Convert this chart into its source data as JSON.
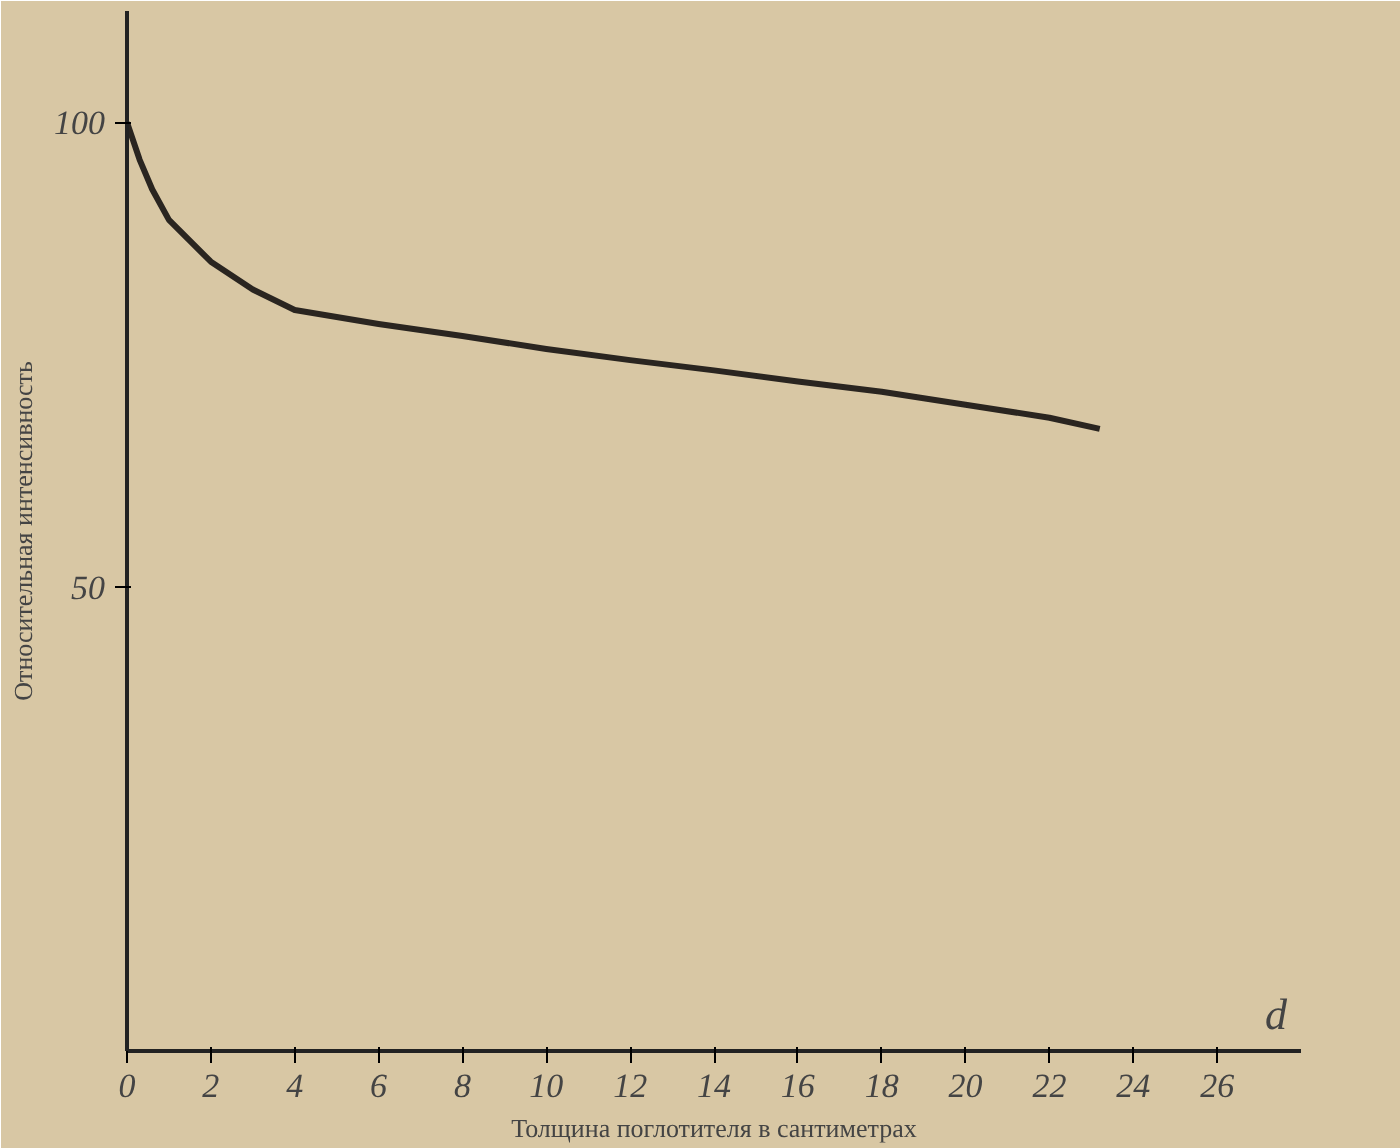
{
  "chart_data": {
    "type": "line",
    "xlabel": "Толщина поглотителя в сантиметрах",
    "ylabel": "Относительная интенсивность",
    "annotations": [
      "d"
    ],
    "x": [
      0,
      0.3,
      0.6,
      1,
      2,
      3,
      4,
      6,
      8,
      10,
      12,
      14,
      16,
      18,
      20,
      22,
      23.2
    ],
    "series": [
      {
        "color": "#2a2520",
        "values": [
          100,
          96,
          92.8,
          89.5,
          85,
          82,
          79.8,
          78.3,
          77,
          75.6,
          74.4,
          73.3,
          72.1,
          71,
          69.6,
          68.2,
          67
        ]
      }
    ],
    "xlim": [
      0,
      28
    ],
    "ylim": [
      0,
      112
    ],
    "xticks": [
      0,
      2,
      4,
      6,
      8,
      10,
      12,
      14,
      16,
      18,
      20,
      22,
      24,
      26
    ],
    "yticks": [
      50,
      100
    ],
    "grid": false,
    "marker": "none",
    "line_style": "solid"
  }
}
